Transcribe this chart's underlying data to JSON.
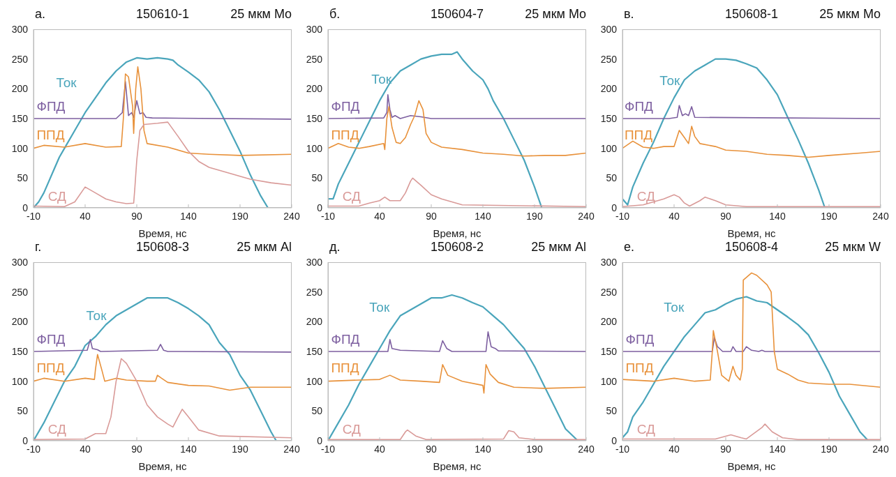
{
  "chart_data": [
    {
      "type": "line",
      "title": "150610-1",
      "annotations": [
        "а.",
        "25 мкм Mo"
      ],
      "xlabel": "Время, нс",
      "xlim": [
        -10,
        240
      ],
      "xticks": [
        -10,
        40,
        90,
        140,
        190,
        240
      ],
      "ylim": [
        0,
        300
      ],
      "yticks": [
        0,
        50,
        100,
        150,
        200,
        250,
        300
      ],
      "series": [
        {
          "name": "Ток",
          "color": "#4aa5bb",
          "x": [
            -10,
            -5,
            0,
            5,
            10,
            15,
            20,
            30,
            40,
            50,
            60,
            70,
            80,
            90,
            100,
            110,
            120,
            125,
            130,
            140,
            150,
            160,
            170,
            180,
            190,
            200,
            210,
            217
          ],
          "values": [
            0,
            10,
            25,
            45,
            65,
            85,
            100,
            130,
            160,
            185,
            210,
            230,
            245,
            252,
            250,
            252,
            250,
            248,
            240,
            228,
            215,
            195,
            165,
            130,
            95,
            55,
            20,
            0
          ]
        },
        {
          "name": "ФПД",
          "color": "#7d5fa0",
          "x": [
            -10,
            70,
            76,
            79,
            82,
            85,
            87,
            90,
            93,
            96,
            99,
            105,
            240
          ],
          "values": [
            150,
            150,
            160,
            212,
            155,
            160,
            152,
            180,
            158,
            160,
            152,
            151,
            149
          ]
        },
        {
          "name": "ППД",
          "color": "#e8913a",
          "x": [
            -10,
            0,
            20,
            40,
            60,
            75,
            77,
            79,
            82,
            86,
            87,
            89,
            91,
            94,
            97,
            100,
            120,
            140,
            160,
            190,
            240
          ],
          "values": [
            100,
            105,
            102,
            108,
            102,
            103,
            150,
            225,
            220,
            170,
            125,
            200,
            237,
            200,
            130,
            108,
            102,
            92,
            90,
            88,
            90
          ]
        },
        {
          "name": "СД",
          "color": "#d99a98",
          "x": [
            -10,
            20,
            30,
            40,
            50,
            60,
            70,
            80,
            87,
            88,
            90,
            93,
            97,
            110,
            120,
            130,
            140,
            150,
            160,
            180,
            200,
            220,
            240
          ],
          "values": [
            3,
            2,
            10,
            35,
            25,
            15,
            10,
            7,
            8,
            30,
            80,
            130,
            140,
            142,
            144,
            120,
            95,
            78,
            68,
            58,
            48,
            42,
            38
          ]
        }
      ]
    },
    {
      "type": "line",
      "title": "150604-7",
      "annotations": [
        "б.",
        "25 мкм Mo"
      ],
      "xlabel": "Время, нс",
      "xlim": [
        -10,
        240
      ],
      "xticks": [
        -10,
        40,
        90,
        140,
        190,
        240
      ],
      "ylim": [
        0,
        300
      ],
      "yticks": [
        0,
        50,
        100,
        150,
        200,
        250,
        300
      ],
      "series": [
        {
          "name": "Ток",
          "color": "#4aa5bb",
          "x": [
            -10,
            -5,
            0,
            10,
            20,
            30,
            40,
            50,
            60,
            70,
            80,
            90,
            100,
            110,
            115,
            120,
            130,
            140,
            145,
            150,
            160,
            170,
            180,
            190,
            197
          ],
          "values": [
            15,
            15,
            40,
            75,
            110,
            145,
            180,
            210,
            230,
            240,
            250,
            255,
            258,
            258,
            262,
            250,
            230,
            215,
            200,
            180,
            150,
            115,
            80,
            35,
            0
          ]
        },
        {
          "name": "ФПД",
          "color": "#7d5fa0",
          "x": [
            -10,
            44,
            47,
            48,
            50,
            52,
            55,
            60,
            70,
            80,
            90,
            240
          ],
          "values": [
            150,
            151,
            160,
            190,
            165,
            152,
            155,
            150,
            155,
            153,
            150,
            150
          ]
        },
        {
          "name": "ППД",
          "color": "#e8913a",
          "x": [
            -10,
            0,
            10,
            20,
            30,
            44,
            45,
            47,
            49,
            52,
            56,
            60,
            65,
            70,
            74,
            78,
            82,
            85,
            90,
            100,
            120,
            140,
            160,
            180,
            200,
            220,
            240
          ],
          "values": [
            100,
            108,
            102,
            100,
            103,
            108,
            98,
            150,
            170,
            135,
            110,
            108,
            118,
            140,
            155,
            180,
            165,
            125,
            110,
            102,
            98,
            92,
            90,
            87,
            88,
            88,
            92
          ]
        },
        {
          "name": "СД",
          "color": "#d99a98",
          "x": [
            -10,
            20,
            30,
            40,
            45,
            50,
            60,
            65,
            70,
            72,
            80,
            90,
            100,
            120,
            240
          ],
          "values": [
            3,
            3,
            8,
            12,
            18,
            12,
            12,
            25,
            45,
            50,
            38,
            22,
            15,
            5,
            2
          ]
        }
      ]
    },
    {
      "type": "line",
      "title": "150608-1",
      "annotations": [
        "в.",
        "25 мкм Mo"
      ],
      "xlabel": "Время, нс",
      "xlim": [
        -10,
        240
      ],
      "xticks": [
        -10,
        40,
        90,
        140,
        190,
        240
      ],
      "ylim": [
        0,
        300
      ],
      "yticks": [
        0,
        50,
        100,
        150,
        200,
        250,
        300
      ],
      "series": [
        {
          "name": "Ток",
          "color": "#4aa5bb",
          "x": [
            -10,
            -5,
            0,
            10,
            20,
            30,
            40,
            50,
            60,
            70,
            80,
            90,
            100,
            110,
            120,
            130,
            140,
            150,
            160,
            170,
            180,
            186
          ],
          "values": [
            15,
            5,
            35,
            75,
            110,
            150,
            185,
            215,
            230,
            240,
            250,
            250,
            248,
            242,
            235,
            215,
            190,
            152,
            115,
            75,
            30,
            0
          ]
        },
        {
          "name": "ФПД",
          "color": "#7d5fa0",
          "x": [
            -10,
            35,
            43,
            45,
            48,
            51,
            54,
            57,
            60,
            240
          ],
          "values": [
            150,
            150,
            152,
            172,
            155,
            158,
            155,
            170,
            152,
            150
          ]
        },
        {
          "name": "ППД",
          "color": "#e8913a",
          "x": [
            -10,
            0,
            10,
            20,
            30,
            40,
            45,
            50,
            54,
            57,
            60,
            65,
            80,
            90,
            110,
            130,
            150,
            170,
            190,
            220,
            240
          ],
          "values": [
            100,
            112,
            102,
            100,
            103,
            103,
            130,
            118,
            108,
            137,
            120,
            108,
            103,
            97,
            95,
            90,
            88,
            85,
            88,
            92,
            95
          ]
        },
        {
          "name": "СД",
          "color": "#d99a98",
          "x": [
            -10,
            10,
            20,
            30,
            40,
            45,
            50,
            55,
            65,
            70,
            80,
            90,
            110,
            240
          ],
          "values": [
            2,
            5,
            10,
            15,
            22,
            18,
            8,
            3,
            12,
            18,
            12,
            5,
            2,
            2
          ]
        }
      ]
    },
    {
      "type": "line",
      "title": "150608-3",
      "annotations": [
        "г.",
        "25 мкм Al"
      ],
      "xlabel": "Время, нс",
      "xlim": [
        -10,
        240
      ],
      "xticks": [
        -10,
        40,
        90,
        140,
        190,
        240
      ],
      "ylim": [
        0,
        300
      ],
      "yticks": [
        0,
        50,
        100,
        150,
        200,
        250,
        300
      ],
      "series": [
        {
          "name": "Ток",
          "color": "#4aa5bb",
          "x": [
            -10,
            0,
            10,
            20,
            30,
            40,
            50,
            60,
            70,
            80,
            90,
            100,
            110,
            120,
            130,
            140,
            150,
            160,
            170,
            180,
            190,
            200,
            210,
            220,
            225
          ],
          "values": [
            0,
            30,
            65,
            100,
            125,
            160,
            175,
            195,
            210,
            220,
            230,
            240,
            240,
            240,
            232,
            222,
            210,
            195,
            165,
            145,
            110,
            85,
            50,
            15,
            0
          ]
        },
        {
          "name": "ФПД",
          "color": "#7d5fa0",
          "x": [
            -10,
            42,
            45,
            47,
            52,
            55,
            110,
            113,
            116,
            120,
            240
          ],
          "values": [
            150,
            152,
            170,
            155,
            153,
            150,
            152,
            162,
            152,
            150,
            149
          ]
        },
        {
          "name": "ППД",
          "color": "#e8913a",
          "x": [
            -10,
            0,
            20,
            40,
            49,
            50,
            52,
            56,
            59,
            70,
            80,
            100,
            108,
            110,
            114,
            120,
            140,
            160,
            180,
            200,
            240
          ],
          "values": [
            100,
            105,
            100,
            105,
            103,
            120,
            145,
            120,
            100,
            105,
            102,
            100,
            100,
            110,
            105,
            98,
            93,
            92,
            85,
            90,
            90
          ]
        },
        {
          "name": "СД",
          "color": "#d99a98",
          "x": [
            -10,
            40,
            50,
            60,
            65,
            70,
            75,
            80,
            90,
            100,
            110,
            120,
            125,
            130,
            134,
            140,
            150,
            170,
            240
          ],
          "values": [
            2,
            3,
            12,
            12,
            40,
            100,
            138,
            130,
            100,
            60,
            40,
            28,
            23,
            40,
            53,
            40,
            18,
            8,
            5
          ]
        }
      ]
    },
    {
      "type": "line",
      "title": "150608-2",
      "annotations": [
        "д.",
        "25 мкм Al"
      ],
      "xlabel": "Время, нс",
      "xlim": [
        -10,
        240
      ],
      "xticks": [
        -10,
        40,
        90,
        140,
        190,
        240
      ],
      "ylim": [
        0,
        300
      ],
      "yticks": [
        0,
        50,
        100,
        150,
        200,
        250,
        300
      ],
      "series": [
        {
          "name": "Ток",
          "color": "#4aa5bb",
          "x": [
            -10,
            0,
            10,
            20,
            30,
            40,
            50,
            60,
            70,
            80,
            90,
            100,
            110,
            120,
            130,
            140,
            150,
            160,
            170,
            180,
            190,
            200,
            210,
            220,
            232
          ],
          "values": [
            0,
            30,
            60,
            95,
            125,
            155,
            185,
            210,
            220,
            230,
            240,
            240,
            245,
            240,
            232,
            225,
            210,
            195,
            175,
            155,
            125,
            90,
            55,
            20,
            0
          ]
        },
        {
          "name": "ФПД",
          "color": "#7d5fa0",
          "x": [
            -10,
            48,
            50,
            52,
            60,
            98,
            101,
            105,
            110,
            143,
            145,
            148,
            152,
            155,
            240
          ],
          "values": [
            150,
            150,
            170,
            155,
            152,
            150,
            168,
            155,
            150,
            150,
            183,
            158,
            155,
            151,
            150
          ]
        },
        {
          "name": "ППД",
          "color": "#e8913a",
          "x": [
            -10,
            20,
            40,
            50,
            60,
            80,
            98,
            101,
            106,
            120,
            140,
            141,
            143,
            147,
            155,
            170,
            200,
            240
          ],
          "values": [
            100,
            102,
            103,
            110,
            102,
            100,
            98,
            128,
            110,
            100,
            93,
            80,
            128,
            112,
            98,
            90,
            88,
            90
          ]
        },
        {
          "name": "СД",
          "color": "#d99a98",
          "x": [
            -10,
            60,
            65,
            67,
            75,
            85,
            160,
            165,
            170,
            175,
            190,
            240
          ],
          "values": [
            2,
            2,
            15,
            18,
            8,
            2,
            3,
            17,
            15,
            5,
            2,
            2
          ]
        }
      ]
    },
    {
      "type": "line",
      "title": "150608-4",
      "annotations": [
        "е.",
        "25 мкм W"
      ],
      "xlabel": "Время, нс",
      "xlim": [
        -10,
        240
      ],
      "xticks": [
        -10,
        40,
        90,
        140,
        190,
        240
      ],
      "ylim": [
        0,
        300
      ],
      "yticks": [
        0,
        50,
        100,
        150,
        200,
        250,
        300
      ],
      "series": [
        {
          "name": "Ток",
          "color": "#4aa5bb",
          "x": [
            -10,
            -5,
            0,
            10,
            20,
            30,
            40,
            50,
            60,
            70,
            80,
            90,
            100,
            110,
            120,
            130,
            140,
            150,
            160,
            170,
            180,
            190,
            200,
            210,
            220,
            228
          ],
          "values": [
            5,
            15,
            40,
            65,
            95,
            125,
            150,
            175,
            195,
            215,
            220,
            230,
            238,
            242,
            235,
            232,
            220,
            208,
            195,
            178,
            148,
            115,
            75,
            45,
            15,
            0
          ]
        },
        {
          "name": "ФПД",
          "color": "#7d5fa0",
          "x": [
            -10,
            77,
            79,
            82,
            84,
            87,
            95,
            97,
            100,
            107,
            110,
            115,
            122,
            125,
            128,
            240
          ],
          "values": [
            150,
            150,
            173,
            158,
            155,
            150,
            150,
            158,
            150,
            150,
            158,
            152,
            150,
            152,
            150,
            150
          ]
        },
        {
          "name": "ППД",
          "color": "#e8913a",
          "x": [
            -10,
            20,
            40,
            60,
            75,
            77,
            78,
            82,
            86,
            93,
            97,
            100,
            104,
            106,
            107,
            115,
            120,
            130,
            134,
            137,
            140,
            150,
            160,
            170,
            190,
            210,
            240
          ],
          "values": [
            103,
            100,
            105,
            100,
            102,
            150,
            185,
            150,
            110,
            100,
            125,
            110,
            102,
            120,
            270,
            282,
            278,
            262,
            250,
            150,
            120,
            112,
            102,
            97,
            95,
            95,
            90
          ]
        },
        {
          "name": "СД",
          "color": "#d99a98",
          "x": [
            -10,
            40,
            80,
            95,
            105,
            110,
            125,
            128,
            135,
            145,
            160,
            240
          ],
          "values": [
            3,
            3,
            3,
            10,
            5,
            3,
            22,
            28,
            15,
            5,
            2,
            2
          ]
        }
      ]
    }
  ]
}
